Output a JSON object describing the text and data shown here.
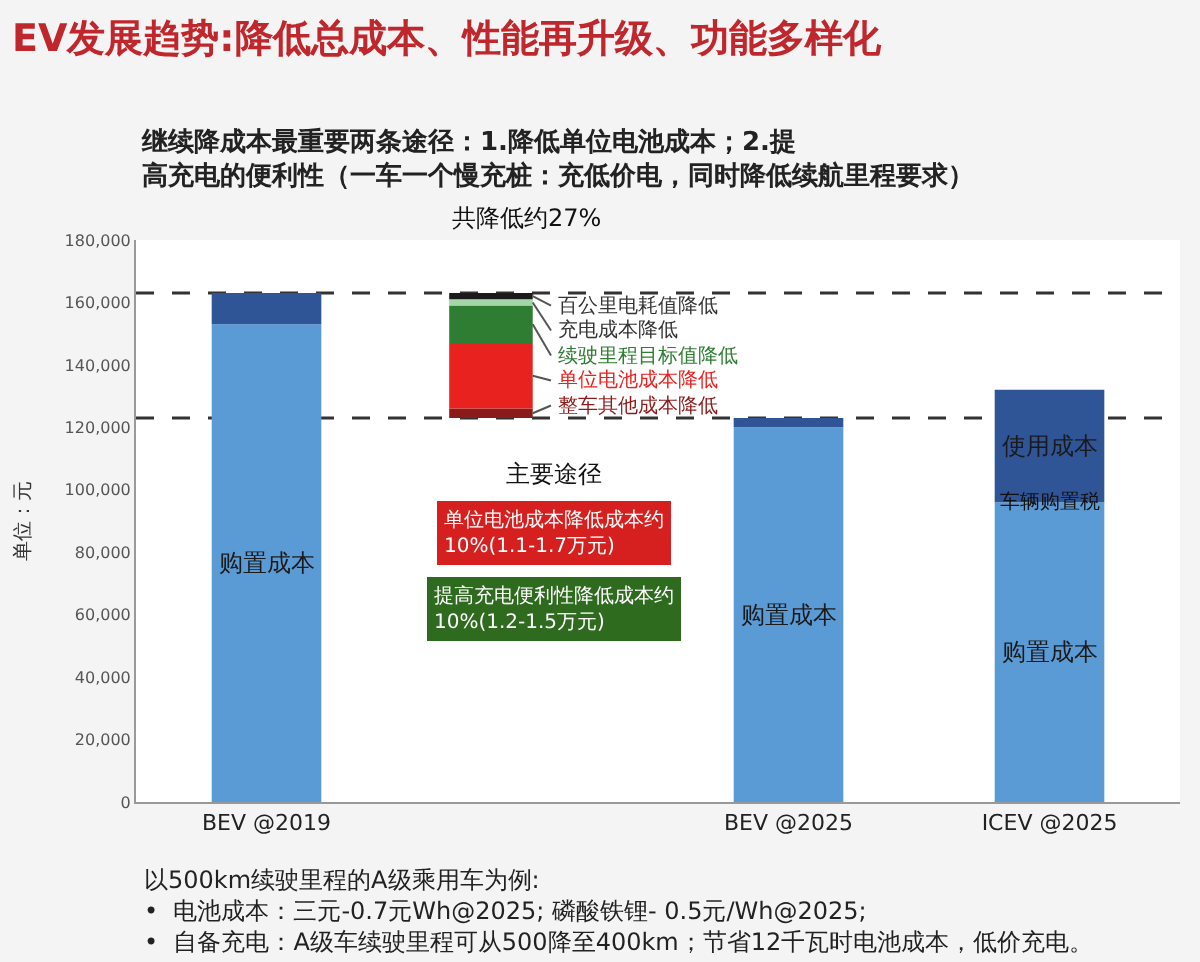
{
  "chart_data": {
    "type": "bar",
    "stacked": true,
    "title": "EV发展趋势:降低总成本、性能再升级、功能多样化",
    "subtitle": "继续降成本最重要两条途径：1.降低单位电池成本；2.提高充电的便利性（一车一个慢充桩：充低价电，同时降低续航里程要求）",
    "ylabel": "单位：元",
    "categories": [
      "BEV @2019",
      null,
      "BEV @2025",
      "ICEV @2025"
    ],
    "series": [
      {
        "name": "购置成本",
        "color": "#5b9bd5",
        "values": [
          153000,
          null,
          120000,
          96000
        ]
      },
      {
        "name": "使用成本",
        "color": "#2f5597",
        "values": [
          10000,
          null,
          3000,
          36000
        ]
      },
      {
        "name": "整车其他成本降低",
        "color": "#8b1a1a",
        "values": [
          null,
          3000,
          null,
          null
        ],
        "base": [
          null,
          123000,
          null,
          null
        ]
      },
      {
        "name": "单位电池成本降低",
        "color": "#e8231f",
        "values": [
          null,
          21000,
          null,
          null
        ]
      },
      {
        "name": "续驶里程目标值降低",
        "color": "#2e7d32",
        "values": [
          null,
          12000,
          null,
          null
        ]
      },
      {
        "name": "充电成本降低",
        "color": "#a5d6a7",
        "values": [
          null,
          2000,
          null,
          null
        ]
      },
      {
        "name": "百公里电耗值降低",
        "color": "#1b1b1b",
        "values": [
          null,
          2000,
          null,
          null
        ]
      }
    ],
    "ylim": [
      0,
      180000
    ],
    "yticks": [
      {
        "value": 0,
        "label": "0"
      },
      {
        "value": 20000,
        "label": "20,000"
      },
      {
        "value": 40000,
        "label": "40,000"
      },
      {
        "value": 60000,
        "label": "60,000"
      },
      {
        "value": 80000,
        "label": "80,000"
      },
      {
        "value": 100000,
        "label": "100,000"
      },
      {
        "value": 120000,
        "label": "120,000"
      },
      {
        "value": 140000,
        "label": "140,000"
      },
      {
        "value": 160000,
        "label": "160,000"
      },
      {
        "value": 180000,
        "label": "180,000"
      }
    ],
    "legend": false,
    "ref_lines": [
      {
        "axis": "y",
        "value": 163000,
        "line_style": "dashed",
        "color": "#333333"
      },
      {
        "axis": "y",
        "value": 123000,
        "line_style": "dashed",
        "color": "#333333"
      }
    ],
    "annotations": [
      "共降低约27%",
      "主要途径",
      "单位电池成本降低成本约\n10%(1.1-1.7万元)",
      "提高充电便利性降低成本约\n10%(1.2-1.5万元)",
      "车辆购置税",
      "以500km续驶里程的A级乘用车为例:\n•  电池成本：三元-0.7元Wh@2025; 磷酸铁锂- 0.5元/Wh@2025;\n•  自备充电：A级车续驶里程可从500降至400km；节省12千瓦时电池成本，低价充电。"
    ]
  }
}
